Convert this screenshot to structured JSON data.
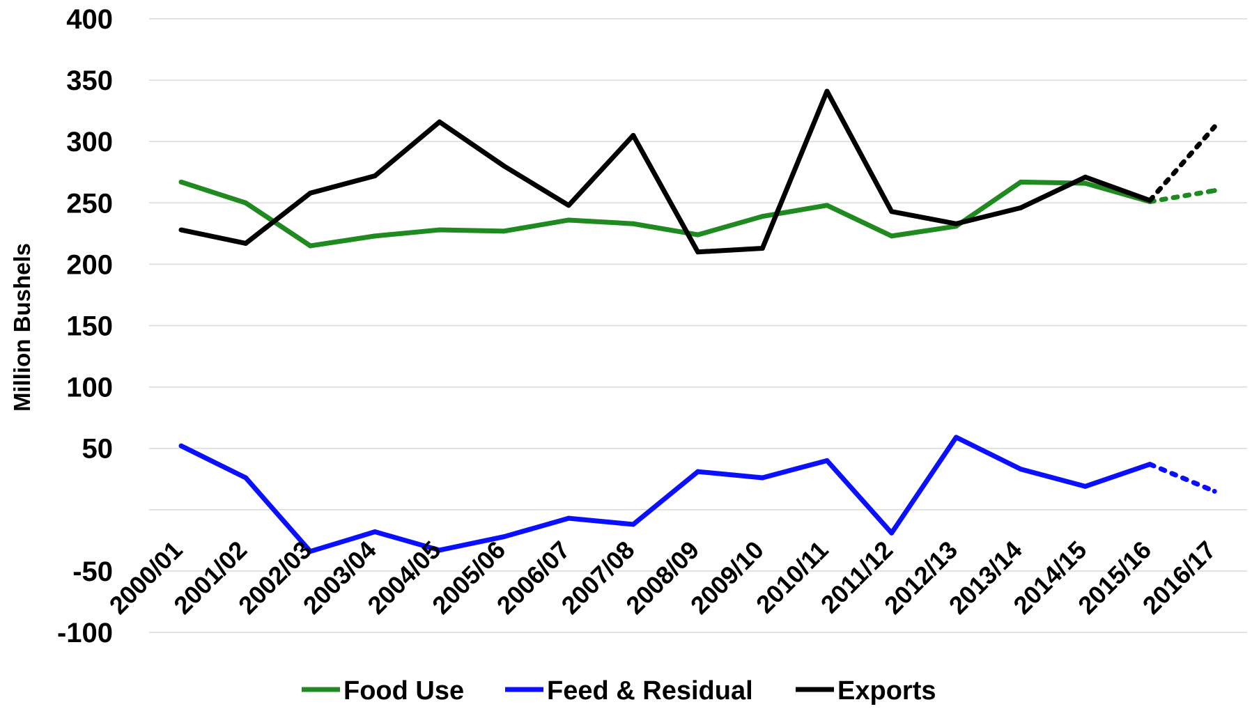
{
  "chart_data": {
    "type": "line",
    "title": "",
    "xlabel": "",
    "ylabel": "Million Bushels",
    "ylim": [
      -100,
      400
    ],
    "yticks": [
      -100,
      -50,
      50,
      100,
      150,
      200,
      250,
      300,
      350,
      400
    ],
    "gridlines": [
      -100,
      -50,
      0,
      50,
      100,
      150,
      200,
      250,
      300,
      350,
      400
    ],
    "grid": true,
    "legend_position": "bottom",
    "categories": [
      "2000/01",
      "2001/02",
      "2002/03",
      "2003/04",
      "2004/05",
      "2005/06",
      "2006/07",
      "2007/08",
      "2008/09",
      "2009/10",
      "2010/11",
      "2011/12",
      "2012/13",
      "2013/14",
      "2014/15",
      "2015/16",
      "2016/17"
    ],
    "series": [
      {
        "name": "Food Use",
        "color": "#1f8a1f",
        "values": [
          267,
          250,
          215,
          223,
          228,
          227,
          236,
          233,
          224,
          239,
          248,
          223,
          231,
          267,
          266,
          251,
          260
        ],
        "projected_from_index": 15
      },
      {
        "name": "Feed & Residual",
        "color": "#0a10ff",
        "values": [
          52,
          26,
          -34,
          -18,
          -33,
          -22,
          -7,
          -12,
          31,
          26,
          40,
          -19,
          59,
          33,
          19,
          37,
          15
        ],
        "projected_from_index": 15
      },
      {
        "name": "Exports",
        "color": "#000000",
        "values": [
          228,
          217,
          258,
          272,
          316,
          280,
          248,
          305,
          210,
          213,
          341,
          243,
          233,
          246,
          271,
          252,
          312
        ],
        "projected_from_index": 15
      }
    ]
  }
}
